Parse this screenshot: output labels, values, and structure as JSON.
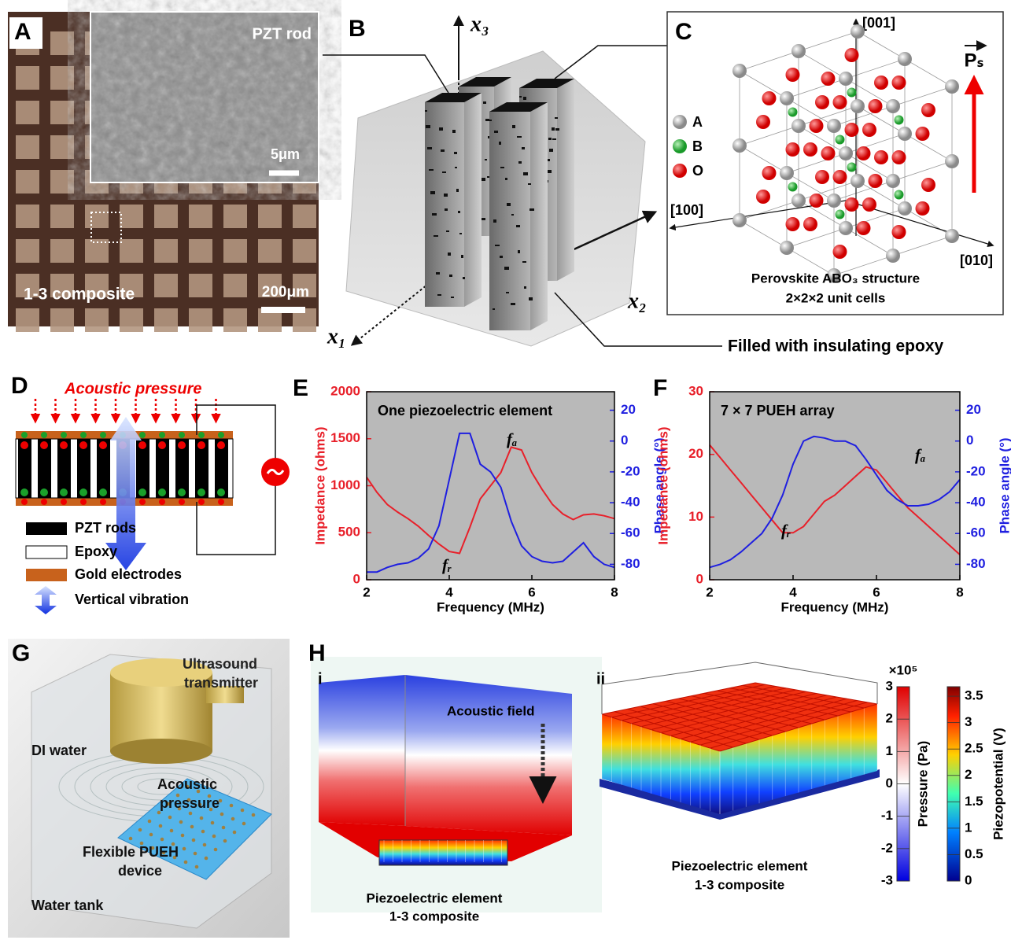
{
  "panel_labels": [
    "A",
    "B",
    "C",
    "D",
    "E",
    "F",
    "G",
    "H"
  ],
  "panel_a": {
    "inset_title": "PZT rod",
    "inset_scale": "5μm",
    "caption": "1-3 composite",
    "scale": "200μm"
  },
  "panel_b": {
    "axes": [
      "x₃",
      "x₂",
      "x₁"
    ],
    "note": "Filled with insulating epoxy"
  },
  "panel_c": {
    "directions": [
      "[001]",
      "[100]",
      "[010]"
    ],
    "legend": [
      "A",
      "B",
      "O"
    ],
    "polarization": "Pₛ",
    "caption": [
      "Perovskite ABO₃ structure",
      "2×2×2 unit cells"
    ]
  },
  "panel_d": {
    "title": "Acoustic pressure",
    "legend": [
      "PZT rods",
      "Epoxy",
      "Gold electrodes",
      "Vertical vibration"
    ]
  },
  "panel_g": {
    "labels": [
      "Ultrasound",
      "transmitter",
      "DI water",
      "Acoustic",
      "pressure",
      "Flexible PUEH",
      "device",
      "Water tank"
    ]
  },
  "panel_h": {
    "subpanels": [
      "i",
      "ii"
    ],
    "annotation": "Acoustic field",
    "captions": [
      [
        "Piezoelectric element",
        "1-3 composite"
      ],
      [
        "Piezoelectric element",
        "1-3 composite"
      ]
    ],
    "pressure_bar": {
      "label": "Pressure (Pa)",
      "multiplier": "×10⁵",
      "lim": [
        -3,
        3
      ],
      "ticks": [
        3,
        2,
        1,
        0,
        -1,
        -2,
        -3
      ]
    },
    "potential_bar": {
      "label": "Piezopotential (V)",
      "lim": [
        0,
        3.68
      ],
      "ticks": [
        3.5,
        3,
        2.5,
        2,
        1.5,
        1,
        0.5,
        0
      ]
    }
  },
  "chart_data": [
    {
      "type": "line",
      "title": "One piezoelectric element",
      "x_label": "Frequency (MHz)",
      "y_label": "Impedance (ohms)",
      "y2_label": "Phase angle (°)",
      "annotations": [
        "fₐ",
        "fᵣ"
      ],
      "background": "#b9b9b9",
      "x": [
        2,
        2.25,
        2.5,
        2.75,
        3,
        3.25,
        3.5,
        3.75,
        4,
        4.25,
        4.5,
        4.75,
        5,
        5.25,
        5.5,
        5.75,
        6,
        6.25,
        6.5,
        6.75,
        7,
        7.25,
        7.5,
        7.75,
        8
      ],
      "xlim": [
        2,
        8
      ],
      "xticks": [
        2,
        4,
        6,
        8
      ],
      "ylim": [
        0,
        2000
      ],
      "yticks": [
        0,
        500,
        1000,
        1500,
        2000
      ],
      "y2lim": [
        -90,
        32
      ],
      "y2ticks": [
        -80,
        -60,
        -40,
        -20,
        0,
        20
      ],
      "series": [
        {
          "color": "#e8202a",
          "values": [
            1090,
            930,
            800,
            720,
            650,
            570,
            470,
            380,
            300,
            280,
            560,
            860,
            1000,
            1140,
            1410,
            1380,
            1140,
            960,
            800,
            700,
            640,
            690,
            700,
            680,
            650
          ]
        },
        {
          "color": "#1f1fe0",
          "axis": "y2",
          "values": [
            -85,
            -85,
            -82,
            -80,
            -79,
            -76,
            -70,
            -55,
            -25,
            5,
            5,
            -15,
            -20,
            -30,
            -52,
            -68,
            -75,
            -78,
            -79,
            -78,
            -72,
            -66,
            -75,
            -80,
            -82
          ]
        }
      ]
    },
    {
      "type": "line",
      "title": "7 × 7 PUEH array",
      "x_label": "Frequency (MHz)",
      "y_label": "Impedance (ohms)",
      "y2_label": "Phase angle (°)",
      "annotations": [
        "fₐ",
        "fᵣ"
      ],
      "background": "#b9b9b9",
      "x": [
        2,
        2.25,
        2.5,
        2.75,
        3,
        3.25,
        3.5,
        3.75,
        4,
        4.25,
        4.5,
        4.75,
        5,
        5.25,
        5.5,
        5.75,
        6,
        6.25,
        6.5,
        6.75,
        7,
        7.25,
        7.5,
        7.75,
        8
      ],
      "xlim": [
        2,
        8
      ],
      "xticks": [
        2,
        4,
        6,
        8
      ],
      "ylim": [
        0,
        30
      ],
      "yticks": [
        0,
        10,
        20,
        30
      ],
      "y2lim": [
        -90,
        32
      ],
      "y2ticks": [
        -80,
        -60,
        -40,
        -20,
        0,
        20
      ],
      "series": [
        {
          "color": "#e8202a",
          "values": [
            21.5,
            19.5,
            17.5,
            15.5,
            13.5,
            11.5,
            9.5,
            7.5,
            7.5,
            8.5,
            10.5,
            12.5,
            13.5,
            15,
            16.5,
            18,
            17.5,
            15.5,
            13.5,
            11.5,
            10,
            8.5,
            7,
            5.5,
            4
          ]
        },
        {
          "color": "#1f1fe0",
          "axis": "y2",
          "values": [
            -82,
            -80,
            -77,
            -72,
            -66,
            -60,
            -50,
            -35,
            -15,
            0,
            3,
            2,
            0,
            0,
            -3,
            -12,
            -22,
            -32,
            -38,
            -42,
            -42,
            -41,
            -38,
            -33,
            -25
          ]
        }
      ]
    }
  ]
}
